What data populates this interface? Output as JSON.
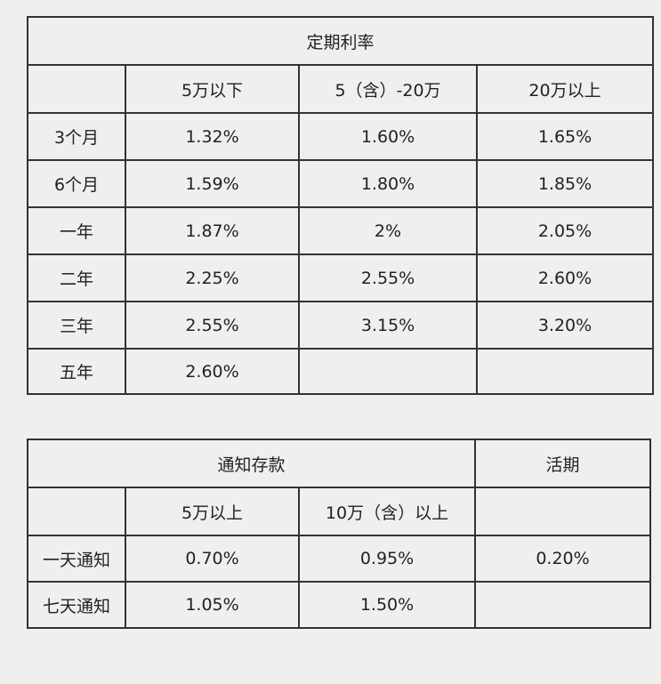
{
  "table1": {
    "title": "定期利率",
    "columns": [
      "5万以下",
      "5（含）-20万",
      "20万以上"
    ],
    "rows": [
      {
        "label": "3个月",
        "values": [
          "1.32%",
          "1.60%",
          "1.65%"
        ]
      },
      {
        "label": "6个月",
        "values": [
          "1.59%",
          "1.80%",
          "1.85%"
        ]
      },
      {
        "label": "一年",
        "values": [
          "1.87%",
          "2%",
          "2.05%"
        ]
      },
      {
        "label": "二年",
        "values": [
          "2.25%",
          "2.55%",
          "2.60%"
        ]
      },
      {
        "label": "三年",
        "values": [
          "2.55%",
          "3.15%",
          "3.20%"
        ]
      },
      {
        "label": "五年",
        "values": [
          "2.60%"
        ]
      }
    ]
  },
  "table2": {
    "title": "通知存款",
    "demand_title": "活期",
    "columns": [
      "5万以上",
      "10万（含）以上"
    ],
    "rows": [
      {
        "label": "一天通知",
        "values": [
          "0.70%",
          "0.95%"
        ],
        "demand": "0.20%"
      },
      {
        "label": "七天通知",
        "values": [
          "1.05%",
          "1.50%"
        ]
      }
    ]
  }
}
